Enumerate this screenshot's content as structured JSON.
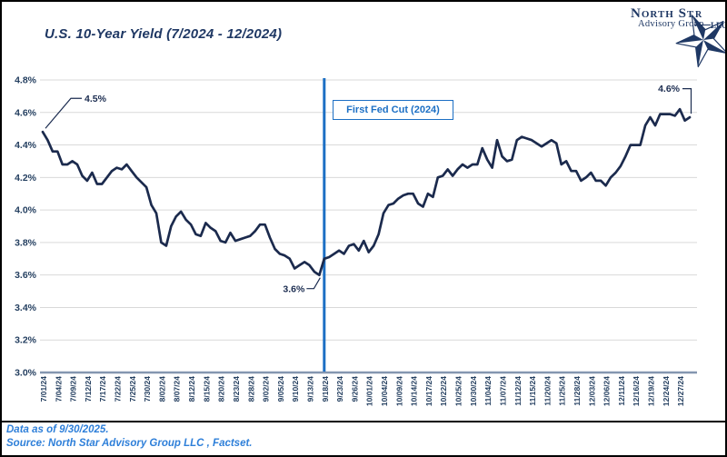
{
  "header": {
    "title": "U.S. 10-Year Yield (7/2024 - 12/2024)"
  },
  "logo": {
    "name_main": "North St",
    "name_r": "r",
    "subtitle": "Advisory Group",
    "llc": "LLC",
    "color": "#1f3864"
  },
  "chart_data": {
    "type": "line",
    "title": "U.S. 10-Year Yield (7/2024 - 12/2024)",
    "ylim": [
      3.0,
      4.8
    ],
    "ytick_step": 0.2,
    "ytick_format": "percent_one_decimal",
    "grid": "horizontal",
    "legend": "none",
    "line_color": "#1b2a4d",
    "x_labels": [
      "7/01/24",
      "7/04/24",
      "7/09/24",
      "7/12/24",
      "7/17/24",
      "7/22/24",
      "7/25/24",
      "7/30/24",
      "8/02/24",
      "8/07/24",
      "8/12/24",
      "8/15/24",
      "8/20/24",
      "8/23/24",
      "8/28/24",
      "9/02/24",
      "9/05/24",
      "9/10/24",
      "9/13/24",
      "9/18/24",
      "9/23/24",
      "9/26/24",
      "10/01/24",
      "10/04/24",
      "10/09/24",
      "10/14/24",
      "10/17/24",
      "10/22/24",
      "10/25/24",
      "10/30/24",
      "11/04/24",
      "11/07/24",
      "11/12/24",
      "11/15/24",
      "11/20/24",
      "11/25/24",
      "11/28/24",
      "12/03/24",
      "12/06/24",
      "12/11/24",
      "12/16/24",
      "12/19/24",
      "12/24/24",
      "12/27/24"
    ],
    "label_every": 3,
    "series": [
      {
        "name": "U.S. 10-Year Yield",
        "values": [
          4.48,
          4.43,
          4.36,
          4.36,
          4.28,
          4.28,
          4.3,
          4.28,
          4.21,
          4.18,
          4.23,
          4.16,
          4.16,
          4.2,
          4.24,
          4.26,
          4.25,
          4.28,
          4.24,
          4.2,
          4.17,
          4.14,
          4.03,
          3.98,
          3.8,
          3.78,
          3.9,
          3.96,
          3.99,
          3.94,
          3.91,
          3.85,
          3.84,
          3.92,
          3.89,
          3.87,
          3.81,
          3.8,
          3.86,
          3.81,
          3.82,
          3.83,
          3.84,
          3.87,
          3.91,
          3.91,
          3.83,
          3.76,
          3.73,
          3.72,
          3.7,
          3.64,
          3.66,
          3.68,
          3.66,
          3.62,
          3.6,
          3.7,
          3.71,
          3.73,
          3.75,
          3.73,
          3.78,
          3.79,
          3.75,
          3.81,
          3.74,
          3.78,
          3.85,
          3.98,
          4.03,
          4.04,
          4.07,
          4.09,
          4.1,
          4.1,
          4.04,
          4.02,
          4.1,
          4.08,
          4.2,
          4.21,
          4.25,
          4.21,
          4.25,
          4.28,
          4.26,
          4.28,
          4.28,
          4.38,
          4.31,
          4.26,
          4.43,
          4.33,
          4.3,
          4.31,
          4.43,
          4.45,
          4.44,
          4.43,
          4.41,
          4.39,
          4.41,
          4.43,
          4.41,
          4.28,
          4.3,
          4.24,
          4.24,
          4.18,
          4.2,
          4.23,
          4.18,
          4.18,
          4.15,
          4.2,
          4.23,
          4.27,
          4.33,
          4.4,
          4.4,
          4.4,
          4.52,
          4.57,
          4.52,
          4.59,
          4.59,
          4.59,
          4.58,
          4.62,
          4.55,
          4.57
        ]
      }
    ],
    "annotations": [
      {
        "text": "4.5%",
        "target": "first"
      },
      {
        "text": "3.6%",
        "target": "min"
      },
      {
        "text": "4.6%",
        "target": "last"
      }
    ],
    "event_line": {
      "label": "First Fed Cut (2024)",
      "x_label": "9/18/24",
      "color": "#1c6fc4"
    }
  },
  "footer": {
    "line1": "Data as of 9/30/2025.",
    "line2": "Source: North Star Advisory Group LLC , Factset.",
    "color": "#2e7fd9"
  }
}
